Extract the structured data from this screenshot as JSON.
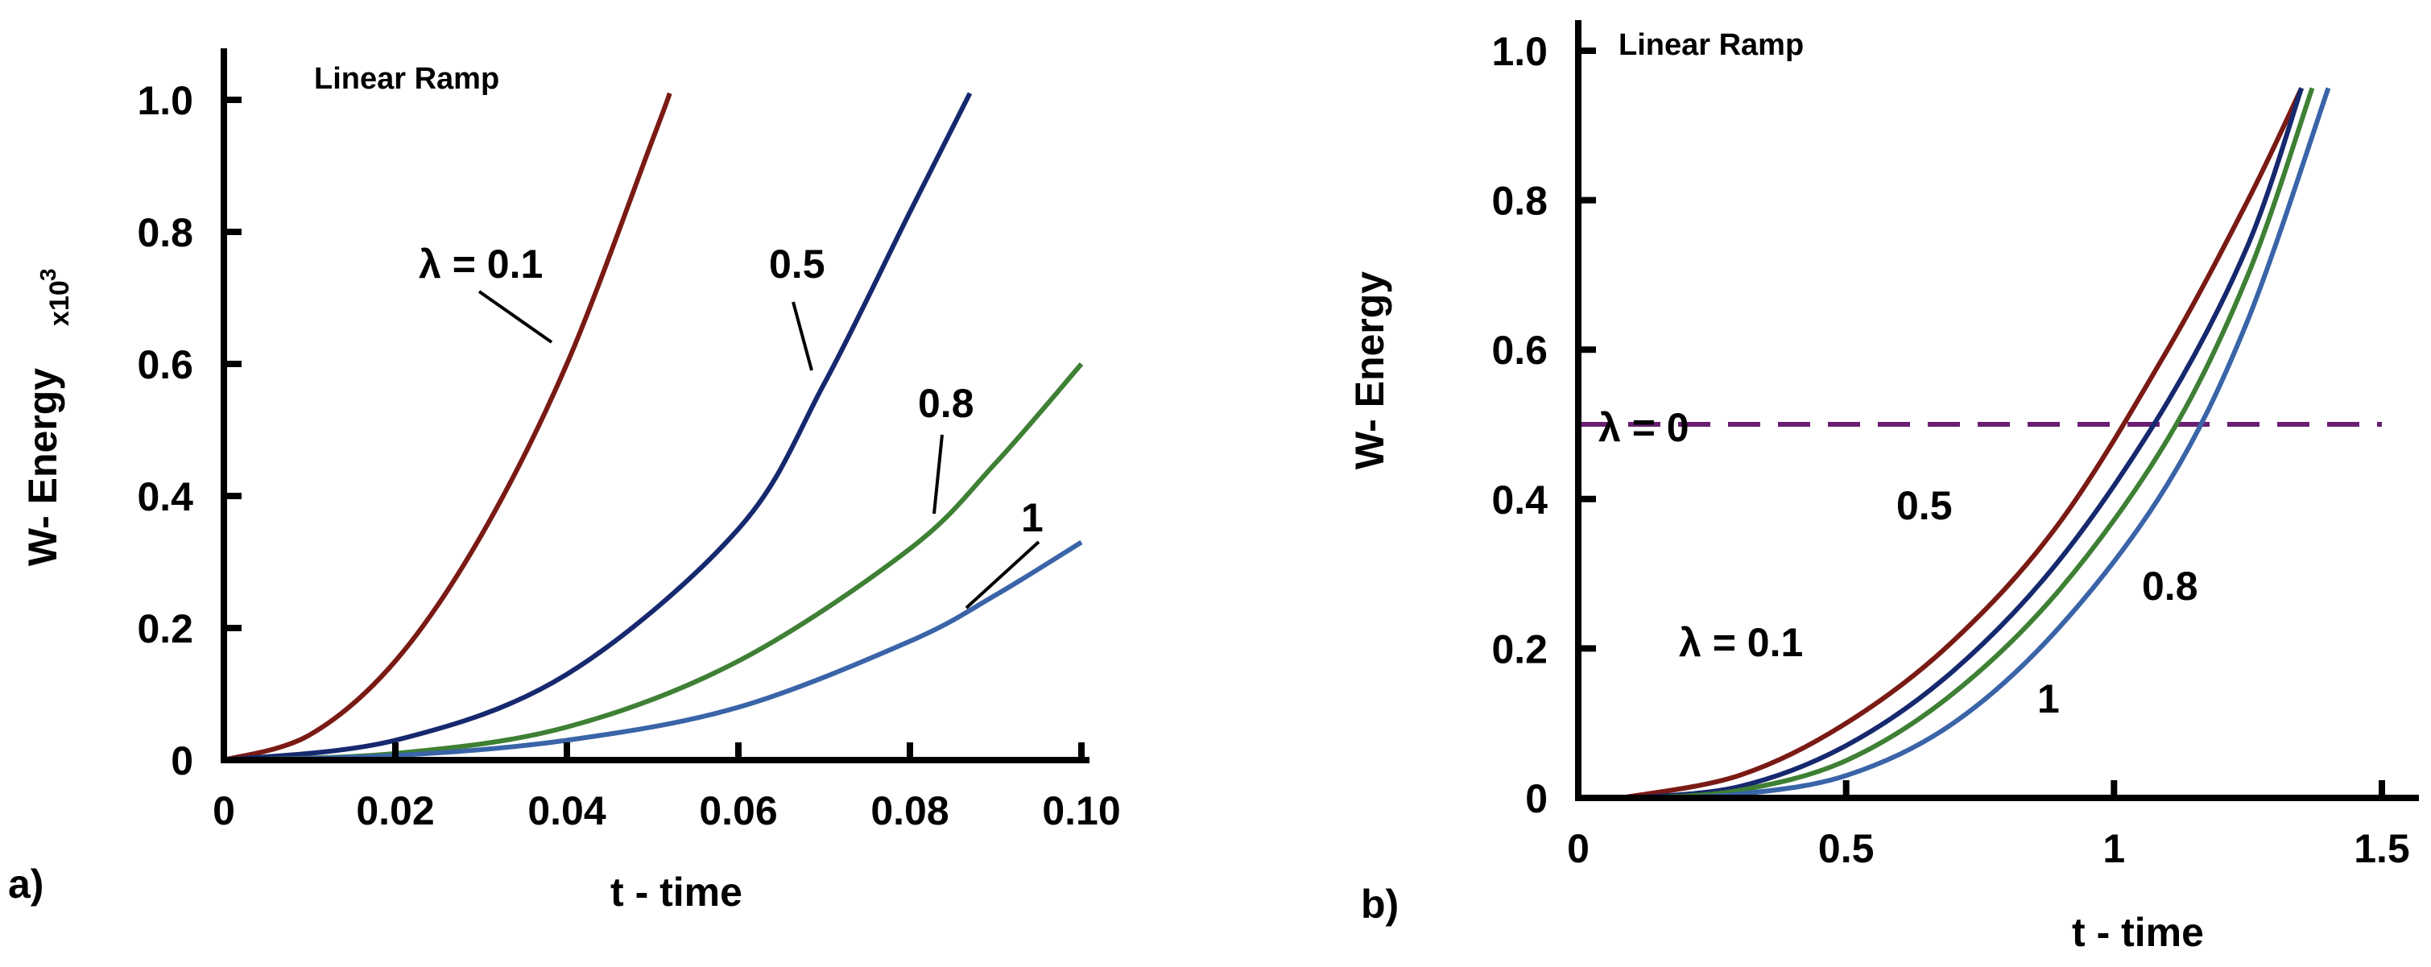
{
  "chart_data": [
    {
      "type": "line",
      "panel": "a)",
      "title": "Linear Ramp",
      "xlabel": "t - time",
      "ylabel": "W- Energy",
      "ylabel_multiplier": "x10",
      "ylabel_multiplier_exp": "3",
      "xlim": [
        0,
        0.1
      ],
      "ylim": [
        0,
        1.0
      ],
      "xticks": [
        0,
        0.02,
        0.04,
        0.06,
        0.08,
        0.1
      ],
      "xtick_labels": [
        "0",
        "0.02",
        "0.04",
        "0.06",
        "0.08",
        "0.10"
      ],
      "yticks": [
        0,
        0.2,
        0.4,
        0.6,
        0.8,
        1.0
      ],
      "ytick_labels": [
        "0",
        "0.2",
        "0.4",
        "0.6",
        "0.8",
        "1.0"
      ],
      "series": [
        {
          "name": "λ = 0.1",
          "label": "λ = 0.1",
          "color": "#7a1a14",
          "x": [
            0,
            0.01,
            0.02,
            0.03,
            0.04,
            0.05,
            0.052
          ],
          "y": [
            0,
            0.038,
            0.15,
            0.34,
            0.6,
            0.94,
            1.01
          ]
        },
        {
          "name": "0.5",
          "label": "0.5",
          "color": "#16286e",
          "x": [
            0,
            0.02,
            0.04,
            0.06,
            0.07,
            0.08,
            0.087
          ],
          "y": [
            0,
            0.03,
            0.13,
            0.35,
            0.57,
            0.83,
            1.01
          ]
        },
        {
          "name": "0.8",
          "label": "0.8",
          "color": "#3e8034",
          "x": [
            0,
            0.02,
            0.04,
            0.06,
            0.08,
            0.09,
            0.1
          ],
          "y": [
            0,
            0.01,
            0.05,
            0.15,
            0.32,
            0.45,
            0.6
          ]
        },
        {
          "name": "1",
          "label": "1",
          "color": "#3a64a8",
          "x": [
            0,
            0.02,
            0.04,
            0.06,
            0.08,
            0.09,
            0.1
          ],
          "y": [
            0,
            0.007,
            0.03,
            0.08,
            0.18,
            0.25,
            0.33
          ]
        }
      ]
    },
    {
      "type": "line",
      "panel": "b)",
      "title": "Linear Ramp",
      "xlabel": "t - time",
      "ylabel": "W- Energy",
      "xlim": [
        0,
        1.5
      ],
      "ylim": [
        0,
        1.0
      ],
      "xticks": [
        0,
        0.5,
        1,
        1.5
      ],
      "xtick_labels": [
        "0",
        "0.5",
        "1",
        "1.5"
      ],
      "yticks": [
        0,
        0.2,
        0.4,
        0.6,
        0.8,
        1.0
      ],
      "ytick_labels": [
        "0",
        "0.2",
        "0.4",
        "0.6",
        "0.8",
        "1.0"
      ],
      "series": [
        {
          "name": "λ = 0",
          "label": "λ = 0",
          "color": "#6a1f73",
          "dashed": true,
          "x": [
            0,
            1.5
          ],
          "y": [
            0.5,
            0.5
          ]
        },
        {
          "name": "λ = 0.1",
          "label": "λ = 0.1",
          "color": "#7a1a14",
          "x": [
            0.08,
            0.3,
            0.5,
            0.7,
            0.9,
            1.1,
            1.25,
            1.35
          ],
          "y": [
            0,
            0.03,
            0.1,
            0.21,
            0.37,
            0.6,
            0.8,
            0.95
          ]
        },
        {
          "name": "0.5",
          "label": "0.5",
          "color": "#16286e",
          "x": [
            0.1,
            0.3,
            0.5,
            0.7,
            0.9,
            1.1,
            1.25,
            1.35
          ],
          "y": [
            0,
            0.015,
            0.07,
            0.17,
            0.32,
            0.53,
            0.74,
            0.95
          ]
        },
        {
          "name": "0.8",
          "label": "0.8",
          "color": "#3e8034",
          "x": [
            0.12,
            0.3,
            0.5,
            0.7,
            0.9,
            1.1,
            1.25,
            1.37
          ],
          "y": [
            0,
            0.01,
            0.05,
            0.14,
            0.28,
            0.48,
            0.7,
            0.95
          ]
        },
        {
          "name": "1",
          "label": "1",
          "color": "#3a64a8",
          "x": [
            0.15,
            0.3,
            0.5,
            0.7,
            0.9,
            1.1,
            1.25,
            1.4
          ],
          "y": [
            0,
            0.005,
            0.03,
            0.1,
            0.23,
            0.42,
            0.64,
            0.95
          ]
        }
      ]
    }
  ]
}
